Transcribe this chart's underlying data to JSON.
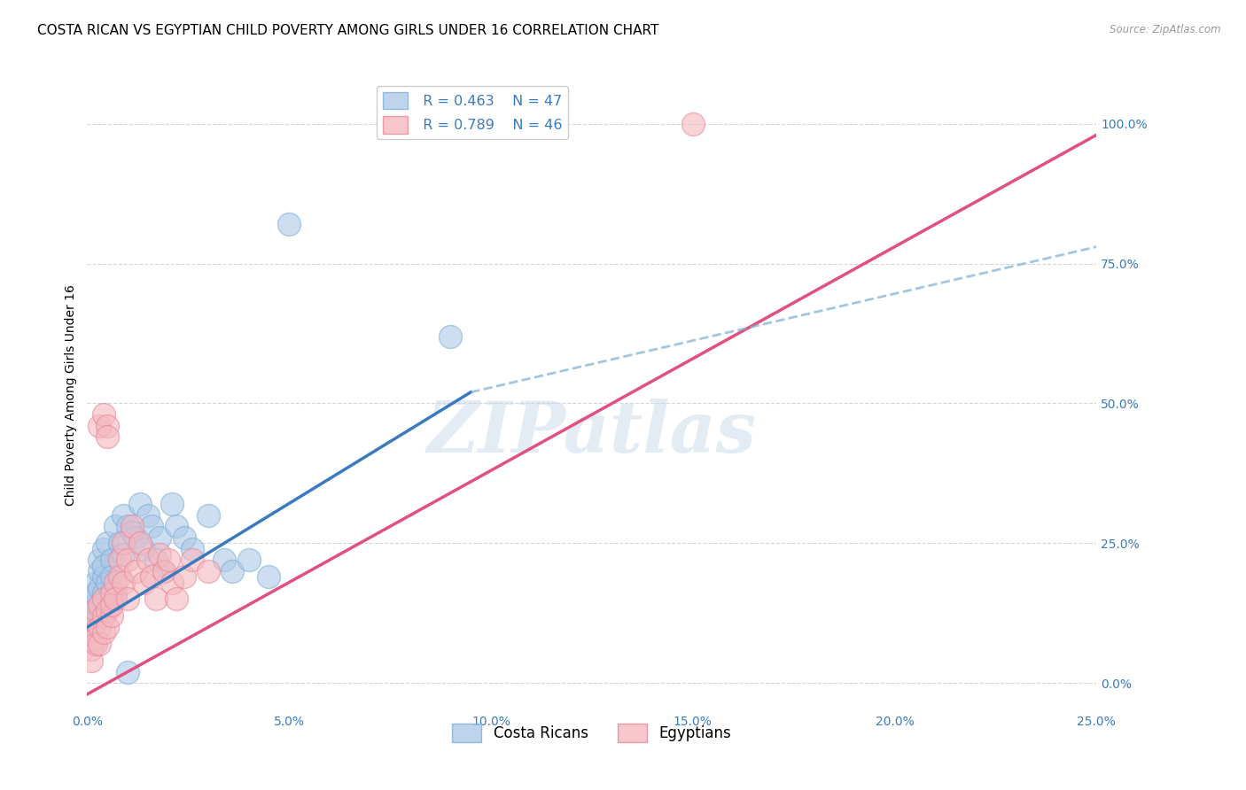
{
  "title": "COSTA RICAN VS EGYPTIAN CHILD POVERTY AMONG GIRLS UNDER 16 CORRELATION CHART",
  "source": "Source: ZipAtlas.com",
  "xlim": [
    0.0,
    0.25
  ],
  "ylim": [
    -0.05,
    1.08
  ],
  "watermark": "ZIPatlas",
  "legend_blue_r": "R = 0.463",
  "legend_blue_n": "N = 47",
  "legend_pink_r": "R = 0.789",
  "legend_pink_n": "N = 46",
  "legend_label_blue": "Costa Ricans",
  "legend_label_pink": "Egyptians",
  "blue_color": "#aec8e8",
  "pink_color": "#f4b8c0",
  "blue_edge_color": "#7bafd4",
  "pink_edge_color": "#e88898",
  "blue_line_color": "#3a7abf",
  "pink_line_color": "#e05080",
  "dashed_line_color": "#7bafd4",
  "blue_scatter": [
    [
      0.001,
      0.12
    ],
    [
      0.001,
      0.15
    ],
    [
      0.001,
      0.1
    ],
    [
      0.002,
      0.18
    ],
    [
      0.002,
      0.14
    ],
    [
      0.002,
      0.11
    ],
    [
      0.002,
      0.16
    ],
    [
      0.003,
      0.2
    ],
    [
      0.003,
      0.17
    ],
    [
      0.003,
      0.13
    ],
    [
      0.003,
      0.22
    ],
    [
      0.004,
      0.19
    ],
    [
      0.004,
      0.16
    ],
    [
      0.004,
      0.24
    ],
    [
      0.004,
      0.21
    ],
    [
      0.005,
      0.18
    ],
    [
      0.005,
      0.25
    ],
    [
      0.005,
      0.15
    ],
    [
      0.006,
      0.22
    ],
    [
      0.006,
      0.19
    ],
    [
      0.007,
      0.28
    ],
    [
      0.007,
      0.16
    ],
    [
      0.008,
      0.25
    ],
    [
      0.009,
      0.3
    ],
    [
      0.009,
      0.23
    ],
    [
      0.01,
      0.28
    ],
    [
      0.01,
      0.02
    ],
    [
      0.011,
      0.27
    ],
    [
      0.012,
      0.26
    ],
    [
      0.013,
      0.32
    ],
    [
      0.014,
      0.24
    ],
    [
      0.015,
      0.3
    ],
    [
      0.016,
      0.28
    ],
    [
      0.017,
      0.22
    ],
    [
      0.018,
      0.26
    ],
    [
      0.019,
      0.2
    ],
    [
      0.021,
      0.32
    ],
    [
      0.022,
      0.28
    ],
    [
      0.024,
      0.26
    ],
    [
      0.026,
      0.24
    ],
    [
      0.03,
      0.3
    ],
    [
      0.034,
      0.22
    ],
    [
      0.036,
      0.2
    ],
    [
      0.04,
      0.22
    ],
    [
      0.045,
      0.19
    ],
    [
      0.05,
      0.82
    ],
    [
      0.09,
      0.62
    ]
  ],
  "pink_scatter": [
    [
      0.001,
      0.06
    ],
    [
      0.001,
      0.09
    ],
    [
      0.001,
      0.04
    ],
    [
      0.002,
      0.08
    ],
    [
      0.002,
      0.11
    ],
    [
      0.002,
      0.07
    ],
    [
      0.002,
      0.13
    ],
    [
      0.003,
      0.1
    ],
    [
      0.003,
      0.14
    ],
    [
      0.003,
      0.07
    ],
    [
      0.003,
      0.46
    ],
    [
      0.004,
      0.12
    ],
    [
      0.004,
      0.09
    ],
    [
      0.004,
      0.15
    ],
    [
      0.004,
      0.48
    ],
    [
      0.005,
      0.13
    ],
    [
      0.005,
      0.1
    ],
    [
      0.005,
      0.46
    ],
    [
      0.005,
      0.44
    ],
    [
      0.006,
      0.12
    ],
    [
      0.006,
      0.16
    ],
    [
      0.006,
      0.14
    ],
    [
      0.007,
      0.18
    ],
    [
      0.007,
      0.15
    ],
    [
      0.008,
      0.22
    ],
    [
      0.008,
      0.19
    ],
    [
      0.009,
      0.25
    ],
    [
      0.009,
      0.18
    ],
    [
      0.01,
      0.22
    ],
    [
      0.01,
      0.15
    ],
    [
      0.011,
      0.28
    ],
    [
      0.012,
      0.2
    ],
    [
      0.013,
      0.25
    ],
    [
      0.014,
      0.18
    ],
    [
      0.015,
      0.22
    ],
    [
      0.016,
      0.19
    ],
    [
      0.017,
      0.15
    ],
    [
      0.018,
      0.23
    ],
    [
      0.019,
      0.2
    ],
    [
      0.02,
      0.22
    ],
    [
      0.021,
      0.18
    ],
    [
      0.022,
      0.15
    ],
    [
      0.024,
      0.19
    ],
    [
      0.026,
      0.22
    ],
    [
      0.03,
      0.2
    ],
    [
      0.15,
      1.0
    ]
  ],
  "blue_line": {
    "x0": 0.0,
    "y0": 0.1,
    "x1": 0.095,
    "y1": 0.52
  },
  "pink_line": {
    "x0": 0.0,
    "y0": -0.02,
    "x1": 0.25,
    "y1": 0.98
  },
  "dashed_line": {
    "x0": 0.095,
    "y0": 0.52,
    "x1": 0.25,
    "y1": 0.78
  },
  "grid_color": "#cccccc",
  "background_color": "#ffffff",
  "title_fontsize": 11,
  "axis_label_fontsize": 10,
  "tick_fontsize": 10
}
